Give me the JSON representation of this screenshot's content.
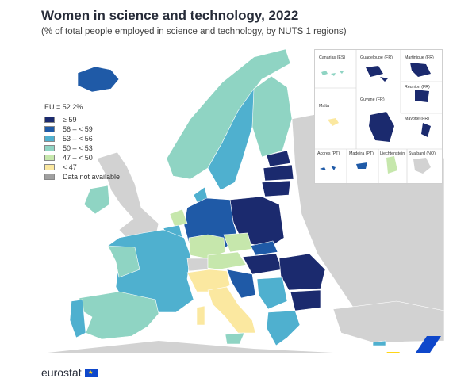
{
  "title": "Women in science and technology, 2022",
  "subtitle": "(% of total people employed in science and technology, by NUTS 1 regions)",
  "legend": {
    "average": "EU = 52.2%",
    "classes": [
      {
        "label": "≥ 59",
        "color": "#1b2a6e"
      },
      {
        "label": "56 – < 59",
        "color": "#1f5aa7"
      },
      {
        "label": "53 – < 56",
        "color": "#4fb0cf"
      },
      {
        "label": "50 – < 53",
        "color": "#8fd4c3"
      },
      {
        "label": "47 – < 50",
        "color": "#c6e7ac"
      },
      {
        "label": "< 47",
        "color": "#fbe8a0"
      },
      {
        "label": "Data not available",
        "color": "#a0a0a0"
      }
    ]
  },
  "insets": {
    "canarias": "Canarias (ES)",
    "guadeloupe": "Guadeloupe (FR)",
    "martinique": "Martinique (FR)",
    "reunion": "Réunion (FR)",
    "malta": "Malta",
    "guyane": "Guyane (FR)",
    "mayotte": "Mayotte (FR)",
    "acores": "Açores (PT)",
    "madeira": "Madeira (PT)",
    "liechtenstein": "Liechtenstein",
    "svalbard": "Svalbard (NO)"
  },
  "footer": {
    "logo_text": "eurostat"
  },
  "colors": {
    "land_no_data": "#d2d2d2",
    "sea": "#ffffff",
    "border": "#ffffff",
    "accent_blue": "#0e47cb",
    "accent_yellow": "#ffd617"
  }
}
